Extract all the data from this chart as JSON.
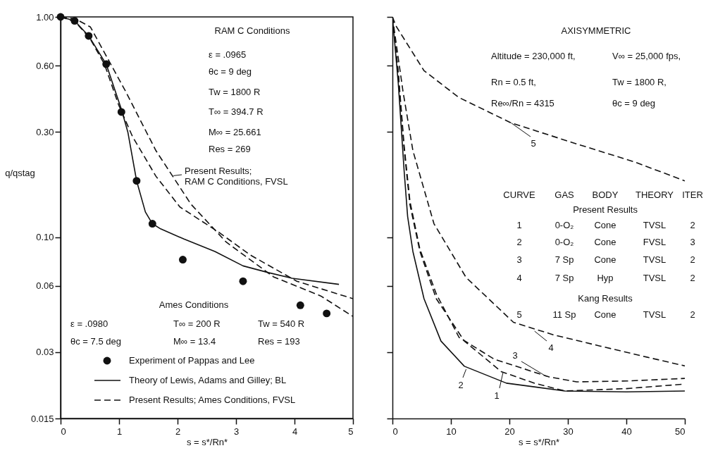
{
  "chart_data": [
    {
      "type": "line",
      "xlabel": "s = s*/Rn*",
      "ylabel": "q/qstag",
      "log": "y",
      "legend": "bottom",
      "xlim": [
        0,
        5
      ],
      "xticks": [
        0,
        1,
        2,
        3,
        4,
        5
      ],
      "ylim": [
        0.015,
        1.0
      ],
      "yticks": [
        0.015,
        0.03,
        0.06,
        {
          "value": 0.1,
          "label": "0.10"
        },
        {
          "value": 0.3,
          "label": "0.30"
        },
        {
          "value": 0.6,
          "label": "0.60"
        },
        {
          "value": 1.0,
          "label": "1.00"
        }
      ],
      "series": [
        {
          "name": "Experiment of Pappas and Lee",
          "type": "scatter",
          "marker": "circle",
          "color": "#111111",
          "x": [
            0,
            0.24,
            0.48,
            0.78,
            1.04,
            1.3,
            1.57,
            2.09,
            3.12,
            4.1,
            4.55
          ],
          "values": [
            1.0,
            0.96,
            0.82,
            0.61,
            0.37,
            0.18,
            0.115,
            0.079,
            0.063,
            0.049,
            0.045
          ]
        },
        {
          "name": "Theory of Lewis, Adams and Gilley; BL",
          "line_style": "solid",
          "color": "#111111",
          "x": [
            0,
            0.24,
            0.48,
            0.78,
            1.04,
            1.15,
            1.3,
            1.45,
            1.57,
            1.71,
            2.11,
            2.64,
            3.12,
            3.55,
            3.96,
            4.76
          ],
          "values": [
            1.0,
            0.96,
            0.82,
            0.61,
            0.38,
            0.3,
            0.18,
            0.13,
            0.115,
            0.109,
            0.098,
            0.086,
            0.074,
            0.069,
            0.065,
            0.061
          ]
        },
        {
          "name": "Present Results; Ames Conditions, FVSL",
          "line_style": "dashed",
          "color": "#111111",
          "x": [
            0,
            0.25,
            0.5,
            0.75,
            0.99,
            1.23,
            1.63,
            2.04,
            2.71,
            3.24,
            4.04,
            5.0
          ],
          "values": [
            1.0,
            0.95,
            0.8,
            0.61,
            0.4,
            0.286,
            0.189,
            0.137,
            0.105,
            0.083,
            0.063,
            0.0525
          ]
        },
        {
          "line_style": "dashed",
          "color": "#111111",
          "x": [
            0,
            0.25,
            0.51,
            1.11,
            1.63,
            2.23,
            2.83,
            3.64,
            4.45,
            5.0
          ],
          "values": [
            1.0,
            0.98,
            0.9,
            0.46,
            0.247,
            0.141,
            0.095,
            0.066,
            0.054,
            0.0436
          ]
        }
      ],
      "annotations": [
        "RAM C Conditions",
        "ε = .0965",
        "θc = 9 deg",
        "Tw = 1800 R",
        "T∞ = 394.7 R",
        "M∞ = 25.661",
        "Res = 269",
        {
          "text": "Present Results; RAM C Conditions, FVSL",
          "x": 1.93,
          "y": 0.19
        },
        "Ames Conditions",
        "ε = .0980",
        "T∞ = 200 R",
        "Tw = 540 R",
        "θc = 7.5 deg",
        "M∞ = 13.4",
        "Res = 193"
      ]
    },
    {
      "type": "line",
      "xlabel": "s = s*/Rn*",
      "log": "y",
      "tick_labels": "x",
      "xlim": [
        0,
        50
      ],
      "xticks": [
        0,
        10,
        20,
        30,
        40,
        50
      ],
      "ylim": [
        0.015,
        1.0
      ],
      "yticks": [
        {
          "value": 0.015,
          "label": null
        },
        {
          "value": 0.03,
          "label": null
        },
        {
          "value": 0.06,
          "label": null
        },
        {
          "value": 0.1,
          "label": null
        },
        {
          "value": 0.3,
          "label": null
        },
        {
          "value": 0.6,
          "label": null
        },
        {
          "value": 1.0,
          "label": null
        }
      ],
      "series": [
        {
          "line_style": "dashed",
          "color": "#111111",
          "x": [
            0,
            1,
            2,
            3,
            4.7,
            7.5,
            12.3,
            18.6,
            24.3,
            29.5,
            40,
            50
          ],
          "values": [
            1.0,
            0.55,
            0.25,
            0.14,
            0.086,
            0.0525,
            0.0337,
            0.0245,
            0.0217,
            0.02,
            0.0205,
            0.0215
          ]
        },
        {
          "line_style": "solid",
          "color": "#111111",
          "x": [
            0,
            1,
            2,
            2.6,
            3.5,
            5.4,
            8.3,
            12.3,
            19.5,
            29.5,
            40,
            50
          ],
          "values": [
            1.0,
            0.5,
            0.2,
            0.124,
            0.086,
            0.0525,
            0.0337,
            0.0259,
            0.0217,
            0.02,
            0.0198,
            0.02
          ]
        },
        {
          "line_style": "dashed",
          "color": "#111111",
          "x": [
            0,
            1,
            2,
            3,
            4.7,
            7.5,
            11.4,
            17.4,
            26.7,
            31.5,
            40,
            50
          ],
          "values": [
            1.0,
            0.56,
            0.26,
            0.145,
            0.088,
            0.0552,
            0.035,
            0.0279,
            0.0232,
            0.022,
            0.0222,
            0.0228
          ]
        },
        {
          "line_style": "dashed",
          "color": "#111111",
          "x": [
            0,
            1.8,
            3.5,
            7.1,
            12.6,
            20.7,
            27.5,
            35.5,
            43.5,
            50
          ],
          "values": [
            1.0,
            0.46,
            0.247,
            0.115,
            0.0655,
            0.041,
            0.036,
            0.032,
            0.0285,
            0.026
          ]
        },
        {
          "line_style": "dashed",
          "color": "#111111",
          "x": [
            0,
            0.6,
            5.4,
            11.4,
            20.3,
            31.5,
            41.5,
            50
          ],
          "values": [
            1.0,
            0.91,
            0.57,
            0.43,
            0.33,
            0.265,
            0.219,
            0.18
          ]
        }
      ],
      "annotations": [
        "AXISYMMETRIC",
        "Altitude = 230,000 ft,",
        "V∞ = 25,000 fps,",
        "Rn = 0.5 ft,",
        "Tw = 1800 R,",
        "Re∞/Rn = 4315",
        "θc = 9 deg",
        "CURVE",
        "GAS",
        "BODY",
        "THEORY",
        "ITER",
        "Present Results",
        "1",
        "0-O₂",
        "Cone",
        "TVSL",
        "2",
        "2",
        "0-O₂",
        "Cone",
        "FVSL",
        "3",
        "3",
        "7 Sp",
        "Cone",
        "TVSL",
        "2",
        "4",
        "7 Sp",
        "Hyp",
        "TVSL",
        "2",
        "Kang Results",
        "5",
        "11 Sp",
        "Cone",
        "TVSL",
        "2",
        {
          "text": "5",
          "x": 20.3,
          "y": 0.33
        },
        {
          "text": "4",
          "x": 24.3,
          "y": 0.0374
        },
        {
          "text": "3",
          "x": 26.3,
          "y": 0.0233
        },
        {
          "text": "2",
          "x": 12.6,
          "y": 0.0251
        },
        {
          "text": "1",
          "x": 18.9,
          "y": 0.0242
        }
      ]
    }
  ]
}
